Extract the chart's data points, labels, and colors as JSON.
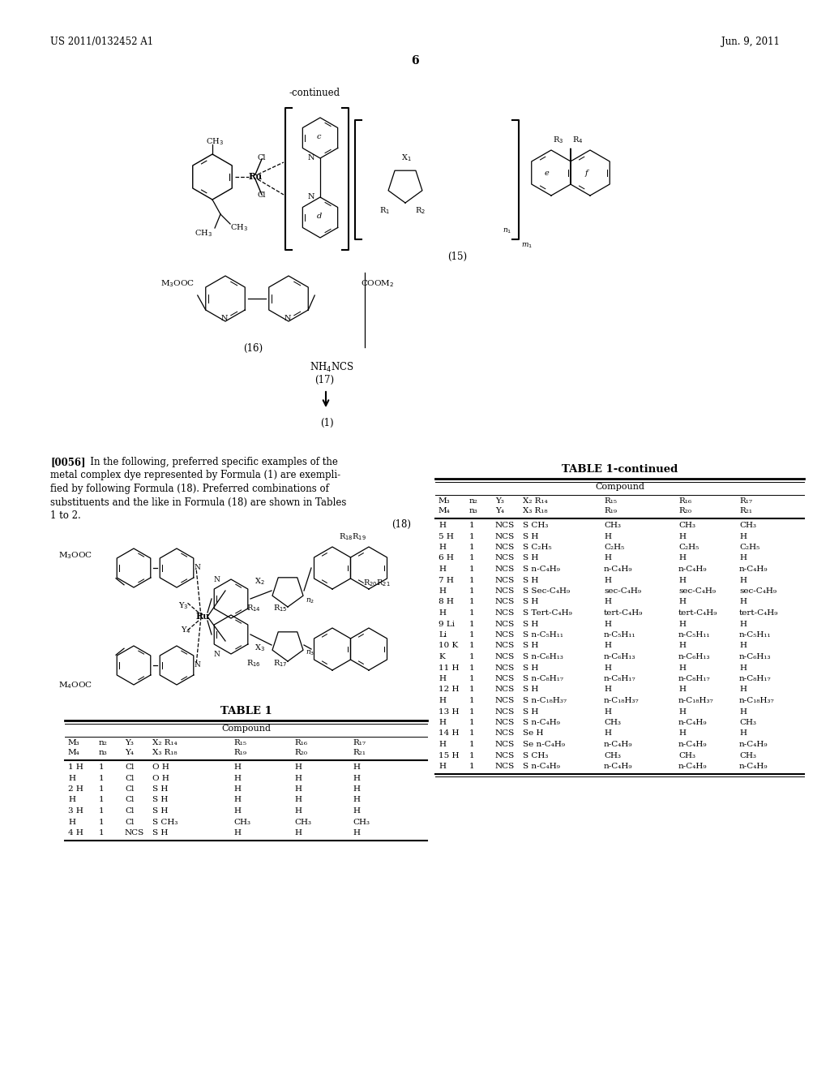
{
  "page_header_left": "US 2011/0132452 A1",
  "page_header_right": "Jun. 9, 2011",
  "page_number": "6",
  "bg_color": "#ffffff",
  "text_color": "#000000",
  "continued_label": "-continued",
  "formula_15_label": "(15)",
  "formula_16_label": "(16)",
  "formula_17_label": "(17)",
  "formula_1_label": "(1)",
  "formula_18_label": "(18)",
  "para_tag": "[0056]",
  "para_body": "In the following, preferred specific examples of the metal complex dye represented by Formula (1) are exemplified by following Formula (18). Preferred combinations of substituents and the like in Formula (18) are shown in Tables 1 to 2.",
  "table1_title": "TABLE 1",
  "table1_cont_title": "TABLE 1-continued",
  "compound_label": "Compound",
  "col_heads_r1": [
    "M₃",
    "n₂",
    "Y₃",
    "X₂ R₁₄",
    "R₁₅",
    "R₁₆",
    "R₁₇"
  ],
  "col_heads_r2": [
    "M₄",
    "n₃",
    "Y₄",
    "X₃ R₁₈",
    "R₁₉",
    "R₂₀",
    "R₂₁"
  ],
  "table1_rows": [
    [
      "1 H",
      "1",
      "Cl",
      "O H",
      "H",
      "H",
      "H"
    ],
    [
      "H",
      "1",
      "Cl",
      "O H",
      "H",
      "H",
      "H"
    ],
    [
      "2 H",
      "1",
      "Cl",
      "S H",
      "H",
      "H",
      "H"
    ],
    [
      "H",
      "1",
      "Cl",
      "S H",
      "H",
      "H",
      "H"
    ],
    [
      "3 H",
      "1",
      "Cl",
      "S H",
      "H",
      "H",
      "H"
    ],
    [
      "H",
      "1",
      "Cl",
      "S CH₃",
      "CH₃",
      "CH₃",
      "CH₃"
    ],
    [
      "4 H",
      "1",
      "NCS",
      "S H",
      "H",
      "H",
      "H"
    ]
  ],
  "table1_cont_rows": [
    [
      "H",
      "1",
      "NCS",
      "S CH₃",
      "CH₃",
      "CH₃",
      "CH₃"
    ],
    [
      "5 H",
      "1",
      "NCS",
      "S H",
      "H",
      "H",
      "H"
    ],
    [
      "H",
      "1",
      "NCS",
      "S C₂H₅",
      "C₂H₅",
      "C₂H₅",
      "C₂H₅"
    ],
    [
      "6 H",
      "1",
      "NCS",
      "S H",
      "H",
      "H",
      "H"
    ],
    [
      "H",
      "1",
      "NCS",
      "S n-C₄H₉",
      "n-C₄H₉",
      "n-C₄H₉",
      "n-C₄H₉"
    ],
    [
      "7 H",
      "1",
      "NCS",
      "S H",
      "H",
      "H",
      "H"
    ],
    [
      "H",
      "1",
      "NCS",
      "S Sec-C₄H₉",
      "sec-C₄H₉",
      "sec-C₄H₉",
      "sec-C₄H₉"
    ],
    [
      "8 H",
      "1",
      "NCS",
      "S H",
      "H",
      "H",
      "H"
    ],
    [
      "H",
      "1",
      "NCS",
      "S Tert-C₄H₉",
      "tert-C₄H₉",
      "tert-C₄H₉",
      "tert-C₄H₉"
    ],
    [
      "9 Li",
      "1",
      "NCS",
      "S H",
      "H",
      "H",
      "H"
    ],
    [
      "Li",
      "1",
      "NCS",
      "S n-C₅H₁₁",
      "n-C₅H₁₁",
      "n-C₅H₁₁",
      "n-C₅H₁₁"
    ],
    [
      "10 K",
      "1",
      "NCS",
      "S H",
      "H",
      "H",
      "H"
    ],
    [
      "K",
      "1",
      "NCS",
      "S n-C₆H₁₃",
      "n-C₆H₁₃",
      "n-C₆H₁₃",
      "n-C₆H₁₃"
    ],
    [
      "11 H",
      "1",
      "NCS",
      "S H",
      "H",
      "H",
      "H"
    ],
    [
      "H",
      "1",
      "NCS",
      "S n-C₈H₁₇",
      "n-C₈H₁₇",
      "n-C₈H₁₇",
      "n-C₈H₁₇"
    ],
    [
      "12 H",
      "1",
      "NCS",
      "S H",
      "H",
      "H",
      "H"
    ],
    [
      "H",
      "1",
      "NCS",
      "S n-C₁₈H₃₇",
      "n-C₁₈H₃₇",
      "n-C₁₈H₃₇",
      "n-C₁₈H₃₇"
    ],
    [
      "13 H",
      "1",
      "NCS",
      "S H",
      "H",
      "H",
      "H"
    ],
    [
      "H",
      "1",
      "NCS",
      "S n-C₄H₉",
      "CH₃",
      "n-C₄H₉",
      "CH₃"
    ],
    [
      "14 H",
      "1",
      "NCS",
      "Se H",
      "H",
      "H",
      "H"
    ],
    [
      "H",
      "1",
      "NCS",
      "Se n-C₄H₉",
      "n-C₄H₉",
      "n-C₄H₉",
      "n-C₄H₉"
    ],
    [
      "15 H",
      "1",
      "NCS",
      "S CH₃",
      "CH₃",
      "CH₃",
      "CH₃"
    ],
    [
      "H",
      "1",
      "NCS",
      "S n-C₄H₉",
      "n-C₄H₉",
      "n-C₄H₉",
      "n-C₄H₉"
    ]
  ]
}
